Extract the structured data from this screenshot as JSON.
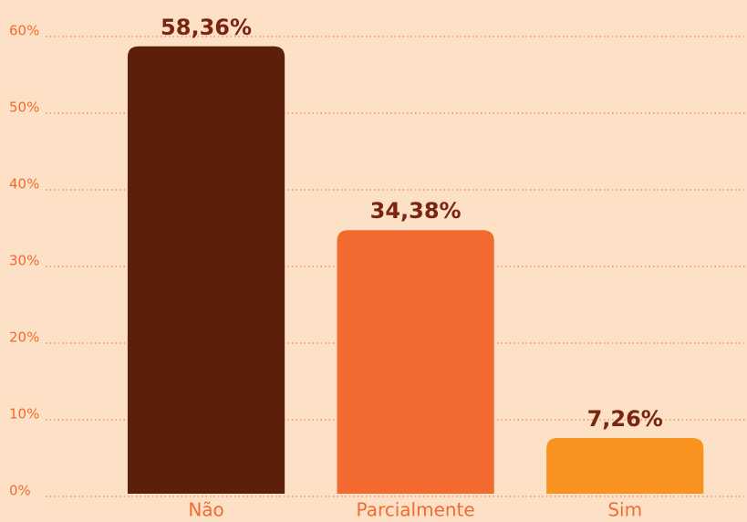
{
  "chart_data": {
    "type": "bar",
    "categories": [
      "Não",
      "Parcialmente",
      "Sim"
    ],
    "values": [
      58.36,
      34.38,
      7.26
    ],
    "value_labels": [
      "58,36%",
      "34,38%",
      "7,26%"
    ],
    "colors": [
      "#5c1f0a",
      "#f26a30",
      "#f7931e"
    ],
    "ylim": [
      0,
      60
    ],
    "yticks": [
      {
        "value": 0,
        "label": "0%"
      },
      {
        "value": 10,
        "label": "10%"
      },
      {
        "value": 20,
        "label": "20%"
      },
      {
        "value": 30,
        "label": "30%"
      },
      {
        "value": 40,
        "label": "40%"
      },
      {
        "value": 50,
        "label": "50%"
      },
      {
        "value": 60,
        "label": "60%"
      }
    ],
    "grid": true
  }
}
